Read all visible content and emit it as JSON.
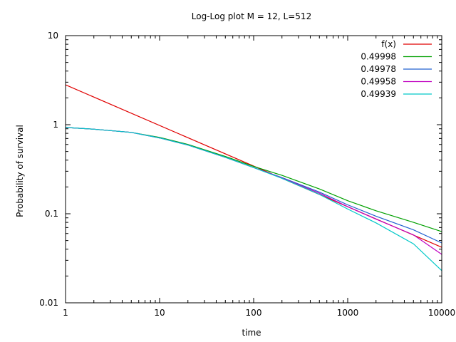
{
  "chart_data": {
    "type": "line",
    "title": "Log-Log plot M = 12, L=512",
    "xlabel": "time",
    "ylabel": "Probability of survival",
    "xscale": "log",
    "yscale": "log",
    "xlim": [
      1,
      10000
    ],
    "ylim": [
      0.01,
      10
    ],
    "x_ticks": [
      1,
      10,
      100,
      1000,
      10000
    ],
    "x_tick_labels": [
      "1",
      "10",
      "100",
      "1000",
      "10000"
    ],
    "y_ticks": [
      0.01,
      0.1,
      1,
      10
    ],
    "y_tick_labels": [
      "0.01",
      "0.1",
      "1",
      "10"
    ],
    "grid": false,
    "legend_position": "top-right",
    "series": [
      {
        "name": "f(x)",
        "color": "#e00000",
        "x": [
          1,
          10000
        ],
        "y": [
          2.8,
          0.042
        ]
      },
      {
        "name": "0.49998",
        "color": "#00a000",
        "x": [
          1,
          2,
          5,
          10,
          20,
          50,
          100,
          200,
          500,
          1000,
          2000,
          5000,
          10000
        ],
        "y": [
          0.93,
          0.89,
          0.82,
          0.72,
          0.6,
          0.44,
          0.34,
          0.27,
          0.19,
          0.14,
          0.108,
          0.08,
          0.063
        ]
      },
      {
        "name": "0.49978",
        "color": "#2060d0",
        "x": [
          1,
          2,
          5,
          10,
          20,
          50,
          100,
          200,
          500,
          1000,
          2000,
          5000,
          10000
        ],
        "y": [
          0.93,
          0.89,
          0.82,
          0.71,
          0.59,
          0.43,
          0.33,
          0.255,
          0.175,
          0.126,
          0.094,
          0.066,
          0.047
        ]
      },
      {
        "name": "0.49958",
        "color": "#c000c0",
        "x": [
          1,
          2,
          5,
          10,
          20,
          50,
          100,
          200,
          500,
          1000,
          2000,
          5000,
          10000
        ],
        "y": [
          0.93,
          0.89,
          0.82,
          0.71,
          0.59,
          0.43,
          0.33,
          0.252,
          0.17,
          0.12,
          0.087,
          0.058,
          0.035
        ]
      },
      {
        "name": "0.49939",
        "color": "#00c8c8",
        "x": [
          1,
          2,
          5,
          10,
          20,
          50,
          100,
          200,
          500,
          1000,
          2000,
          5000,
          10000
        ],
        "y": [
          0.93,
          0.89,
          0.82,
          0.71,
          0.59,
          0.43,
          0.33,
          0.25,
          0.165,
          0.113,
          0.079,
          0.046,
          0.023
        ]
      }
    ]
  }
}
